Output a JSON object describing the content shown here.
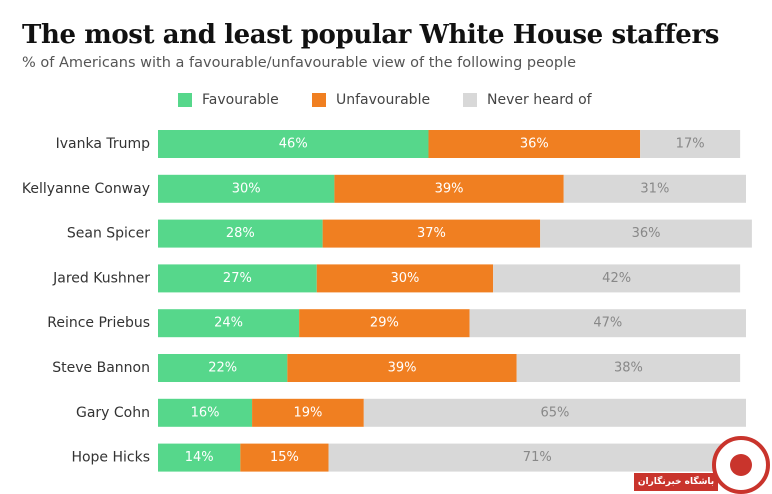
{
  "title": "The most and least popular White House staffers",
  "subtitle": "% of Americans with a favourable/unfavourable view of the following people",
  "colors": {
    "favourable": "#56d78b",
    "unfavourable": "#f07f21",
    "never": "#d8d8d8",
    "text_on_bar_light": "#ffffff",
    "text_on_bar_dark": "#888888",
    "label": "#333333"
  },
  "legend": [
    {
      "label": "Favourable",
      "color": "#56d78b"
    },
    {
      "label": "Unfavourable",
      "color": "#f07f21"
    },
    {
      "label": "Never heard of",
      "color": "#d8d8d8"
    }
  ],
  "watermark_text": "باشگاه خبرنگاران",
  "chart_data": {
    "type": "bar",
    "orientation": "horizontal",
    "stacked": true,
    "categories": [
      "Ivanka Trump",
      "Kellyanne Conway",
      "Sean Spicer",
      "Jared Kushner",
      "Reince Priebus",
      "Steve Bannon",
      "Gary Cohn",
      "Hope Hicks"
    ],
    "series": [
      {
        "name": "Favourable",
        "values": [
          46,
          30,
          28,
          27,
          24,
          22,
          16,
          14
        ]
      },
      {
        "name": "Unfavourable",
        "values": [
          36,
          39,
          37,
          30,
          29,
          39,
          19,
          15
        ]
      },
      {
        "name": "Never heard of",
        "values": [
          17,
          31,
          36,
          42,
          47,
          38,
          65,
          71
        ]
      }
    ],
    "value_labels": [
      [
        "46%",
        "30%",
        "28%",
        "27%",
        "24%",
        "22%",
        "16%",
        "14%"
      ],
      [
        "36%",
        "39%",
        "37%",
        "30%",
        "29%",
        "39%",
        "19%",
        "15%"
      ],
      [
        "17%",
        "31%",
        "36%",
        "42%",
        "47%",
        "38%",
        "65%",
        "71%"
      ]
    ],
    "title": "The most and least popular White House staffers",
    "xlabel": "",
    "ylabel": "",
    "xlim": [
      0,
      100
    ],
    "grid": false,
    "legend_position": "top"
  }
}
